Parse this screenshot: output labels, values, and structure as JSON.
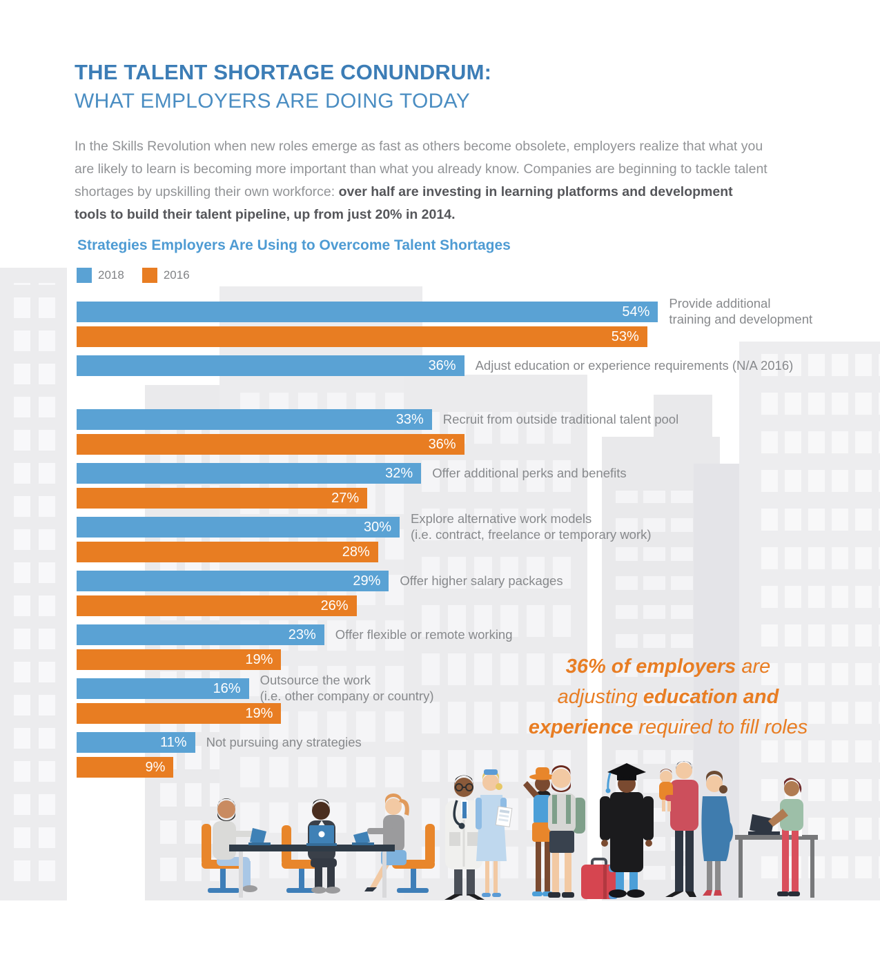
{
  "header": {
    "title_line1": "THE TALENT SHORTAGE CONUNDRUM:",
    "title_line2": "WHAT EMPLOYERS ARE DOING TODAY",
    "intro_regular": "In the Skills Revolution when new roles emerge as fast as others become obsolete, employers realize that what you are likely to learn is becoming more important than what you already know. Companies are beginning to tackle talent shortages by upskilling their own workforce: ",
    "intro_bold": "over half are investing in learning platforms and development tools to build their talent pipeline, up from just 20% in 2014."
  },
  "chart": {
    "title": "Strategies Employers Are Using to Overcome Talent Shortages",
    "legend": [
      {
        "label": "2018",
        "color": "#5AA2D4"
      },
      {
        "label": "2016",
        "color": "#E87D22"
      }
    ]
  },
  "chart_data": {
    "type": "bar",
    "orientation": "horizontal",
    "value_suffix": "%",
    "xlim": [
      0,
      55
    ],
    "grid": false,
    "legend_position": "top-left",
    "categories": [
      [
        "Provide additional",
        "training and development"
      ],
      [
        "Adjust education or experience requirements (N/A 2016)"
      ],
      [
        "Recruit from outside traditional talent pool"
      ],
      [
        "Offer additional perks and benefits"
      ],
      [
        "Explore alternative work models",
        "(i.e. contract, freelance or temporary work)"
      ],
      [
        "Offer higher salary packages"
      ],
      [
        "Offer flexible or remote working"
      ],
      [
        "Outsource the work",
        "(i.e. other company or country)"
      ],
      [
        "Not pursuing any strategies"
      ]
    ],
    "series": [
      {
        "name": "2018",
        "color": "#5AA2D4",
        "values": [
          54,
          36,
          33,
          32,
          30,
          29,
          23,
          16,
          11
        ]
      },
      {
        "name": "2016",
        "color": "#E87D22",
        "values": [
          53,
          null,
          36,
          27,
          28,
          26,
          19,
          19,
          9
        ]
      }
    ]
  },
  "callout": {
    "color": "#E87D23",
    "lines": [
      [
        {
          "text": "36% of employers",
          "bold": true
        },
        {
          "text": " are",
          "bold": false
        }
      ],
      [
        {
          "text": "adjusting ",
          "bold": false
        },
        {
          "text": "education and",
          "bold": true
        }
      ],
      [
        {
          "text": "experience",
          "bold": true
        },
        {
          "text": " required to fill roles",
          "bold": false
        }
      ]
    ]
  },
  "illustration": {
    "figures": [
      "office-meeting-table",
      "office-worker-male-left",
      "office-worker-male-center",
      "office-worker-female-right",
      "doctor",
      "nurse",
      "traveler-woman",
      "traveler-man",
      "suitcase",
      "graduate",
      "father-holding-child",
      "pregnant-woman",
      "woman-standing-desk"
    ]
  }
}
